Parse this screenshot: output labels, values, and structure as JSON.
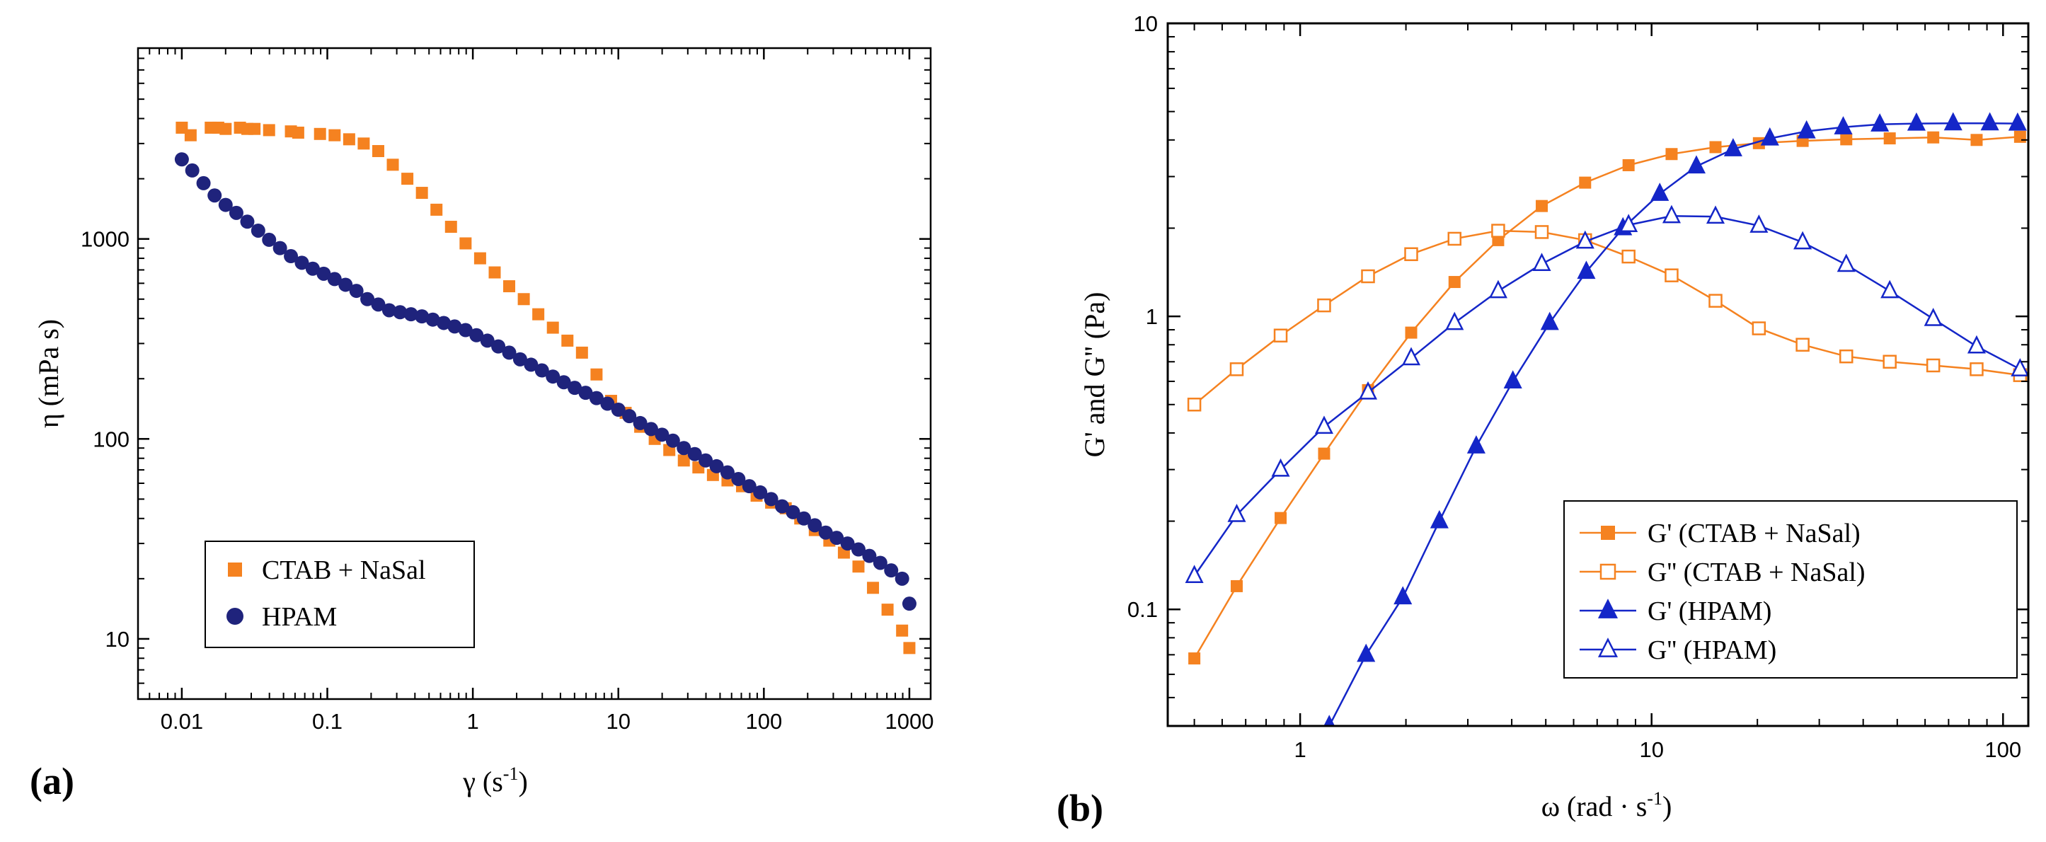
{
  "chart_data": [
    {
      "type": "scatter",
      "panel_label": "(a)",
      "xscale": "log",
      "yscale": "log",
      "xlim": [
        0.005,
        1400
      ],
      "ylim": [
        5,
        9000
      ],
      "xlabel": "γ",
      "xlabel_unit_base": "(s",
      "xlabel_unit_exp": "-1",
      "xlabel_unit_close": ")",
      "ylabel": "η  (mPa s)",
      "xticks": [
        {
          "v": 0.01,
          "label": "0.01"
        },
        {
          "v": 0.1,
          "label": "0.1"
        },
        {
          "v": 1,
          "label": "1"
        },
        {
          "v": 10,
          "label": "10"
        },
        {
          "v": 100,
          "label": "100"
        },
        {
          "v": 1000,
          "label": "1000"
        }
      ],
      "yticks": [
        {
          "v": 10,
          "label": "10"
        },
        {
          "v": 100,
          "label": "100"
        },
        {
          "v": 1000,
          "label": "1000"
        }
      ],
      "legend_position": "lower-left",
      "series": [
        {
          "name": "CTAB + NaSal",
          "color": "#f58220",
          "marker": "square",
          "x": [
            0.01,
            0.0115,
            0.0158,
            0.0178,
            0.02,
            0.0251,
            0.0282,
            0.0316,
            0.0398,
            0.0562,
            0.0631,
            0.0891,
            0.1122,
            0.1413,
            0.1778,
            0.2239,
            0.2818,
            0.3548,
            0.4467,
            0.5623,
            0.7079,
            0.8913,
            1.122,
            1.413,
            1.778,
            2.239,
            2.818,
            3.548,
            4.467,
            5.623,
            7.079,
            8.913,
            11.22,
            14.13,
            17.78,
            22.39,
            28.18,
            35.48,
            44.67,
            56.23,
            70.79,
            89.13,
            112.2,
            141.3,
            177.8,
            223.9,
            281.8,
            354.8,
            446.7,
            562.3,
            707.9,
            891.3,
            1000
          ],
          "y": [
            3600,
            3300,
            3600,
            3600,
            3550,
            3600,
            3550,
            3550,
            3500,
            3450,
            3400,
            3350,
            3300,
            3150,
            3000,
            2750,
            2350,
            2000,
            1700,
            1400,
            1150,
            950,
            800,
            680,
            580,
            500,
            420,
            360,
            310,
            270,
            210,
            155,
            135,
            115,
            100,
            88,
            78,
            72,
            66,
            62,
            58,
            52,
            48,
            45,
            40,
            35,
            31,
            27,
            23,
            18,
            14,
            11,
            9
          ]
        },
        {
          "name": "HPAM",
          "color": "#1f237c",
          "marker": "circle",
          "x": [
            0.01,
            0.0118,
            0.0141,
            0.0168,
            0.02,
            0.0237,
            0.0282,
            0.0335,
            0.0398,
            0.0473,
            0.0562,
            0.0668,
            0.0794,
            0.0944,
            0.1122,
            0.1334,
            0.1585,
            0.1884,
            0.2239,
            0.2661,
            0.3162,
            0.3758,
            0.4467,
            0.5309,
            0.631,
            0.7499,
            0.8913,
            1.059,
            1.259,
            1.496,
            1.778,
            2.113,
            2.512,
            2.985,
            3.548,
            4.217,
            5.012,
            5.957,
            7.079,
            8.414,
            10,
            11.89,
            14.13,
            16.79,
            19.95,
            23.71,
            28.18,
            33.5,
            39.81,
            47.32,
            56.23,
            66.83,
            79.43,
            94.41,
            112.2,
            133.4,
            158.5,
            188.4,
            223.9,
            266.1,
            316.2,
            375.8,
            446.7,
            530.9,
            631,
            749.9,
            891.3,
            1000
          ],
          "y": [
            2500,
            2200,
            1900,
            1650,
            1480,
            1350,
            1220,
            1100,
            990,
            900,
            820,
            760,
            710,
            670,
            630,
            590,
            550,
            500,
            470,
            440,
            430,
            420,
            410,
            395,
            380,
            365,
            350,
            330,
            310,
            290,
            270,
            250,
            235,
            220,
            205,
            192,
            180,
            170,
            160,
            150,
            140,
            130,
            120,
            112,
            105,
            98,
            90,
            84,
            78,
            73,
            68,
            63,
            58,
            54,
            50,
            46,
            43,
            40,
            37,
            34,
            32,
            30,
            28,
            26,
            24,
            22,
            20,
            15
          ]
        }
      ],
      "legend": [
        "CTAB + NaSal",
        "HPAM"
      ]
    },
    {
      "type": "line",
      "panel_label": "(b)",
      "xscale": "log",
      "yscale": "log",
      "xlim": [
        0.42,
        118
      ],
      "ylim": [
        0.04,
        10
      ],
      "xlabel": "ω  (rad · s",
      "xlabel_exp": "-1",
      "xlabel_close": ")",
      "ylabel": "G' and G'' (Pa)",
      "xticks": [
        {
          "v": 1,
          "label": "1"
        },
        {
          "v": 10,
          "label": "10"
        },
        {
          "v": 100,
          "label": "100"
        }
      ],
      "yticks": [
        {
          "v": 0.1,
          "label": "0.1"
        },
        {
          "v": 1,
          "label": "1"
        },
        {
          "v": 10,
          "label": "10"
        }
      ],
      "legend_position": "lower-right",
      "series": [
        {
          "name": "G'  (CTAB + NaSal)",
          "color": "#f58220",
          "marker": "square",
          "filled": true,
          "x": [
            0.5,
            0.66,
            0.88,
            1.17,
            1.56,
            2.07,
            2.75,
            3.66,
            4.87,
            6.47,
            8.6,
            11.4,
            15.2,
            20.2,
            26.9,
            35.8,
            47.6,
            63.3,
            84.1,
            111.8
          ],
          "y": [
            0.068,
            0.12,
            0.205,
            0.34,
            0.56,
            0.88,
            1.31,
            1.82,
            2.38,
            2.86,
            3.28,
            3.58,
            3.78,
            3.9,
            3.97,
            4.02,
            4.05,
            4.08,
            4.0,
            4.1
          ]
        },
        {
          "name": "G'' (CTAB + NaSal)",
          "color": "#f58220",
          "marker": "square",
          "filled": false,
          "x": [
            0.5,
            0.66,
            0.88,
            1.17,
            1.56,
            2.07,
            2.75,
            3.66,
            4.87,
            6.47,
            8.6,
            11.4,
            15.2,
            20.2,
            26.9,
            35.8,
            47.6,
            63.3,
            84.1,
            111.8
          ],
          "y": [
            0.5,
            0.66,
            0.86,
            1.09,
            1.37,
            1.63,
            1.84,
            1.96,
            1.94,
            1.82,
            1.6,
            1.38,
            1.13,
            0.91,
            0.8,
            0.73,
            0.7,
            0.68,
            0.66,
            0.63
          ]
        },
        {
          "name": "G'  (HPAM)",
          "color": "#1426c8",
          "marker": "triangle",
          "filled": true,
          "x": [
            1.21,
            1.54,
            1.96,
            2.49,
            3.17,
            4.03,
            5.13,
            6.52,
            8.29,
            10.55,
            13.41,
            17.06,
            21.7,
            27.6,
            35.1,
            44.6,
            56.7,
            72.1,
            91.7,
            110
          ],
          "y": [
            0.04,
            0.07,
            0.11,
            0.2,
            0.36,
            0.6,
            0.95,
            1.42,
            2.0,
            2.62,
            3.25,
            3.72,
            4.05,
            4.28,
            4.42,
            4.52,
            4.55,
            4.56,
            4.56,
            4.55
          ]
        },
        {
          "name": "G'' (HPAM)",
          "color": "#1426c8",
          "marker": "triangle",
          "filled": false,
          "x": [
            0.5,
            0.66,
            0.88,
            1.17,
            1.56,
            2.07,
            2.75,
            3.66,
            4.87,
            6.47,
            8.6,
            11.4,
            15.2,
            20.2,
            26.9,
            35.8,
            47.6,
            63.3,
            84.1,
            111.8
          ],
          "y": [
            0.13,
            0.21,
            0.3,
            0.42,
            0.55,
            0.72,
            0.95,
            1.22,
            1.51,
            1.8,
            2.05,
            2.2,
            2.19,
            2.04,
            1.79,
            1.5,
            1.22,
            0.98,
            0.79,
            0.66
          ]
        }
      ],
      "legend": [
        "G'  (CTAB + NaSal)",
        "G'' (CTAB + NaSal)",
        "G'  (HPAM)",
        "G'' (HPAM)"
      ]
    }
  ]
}
